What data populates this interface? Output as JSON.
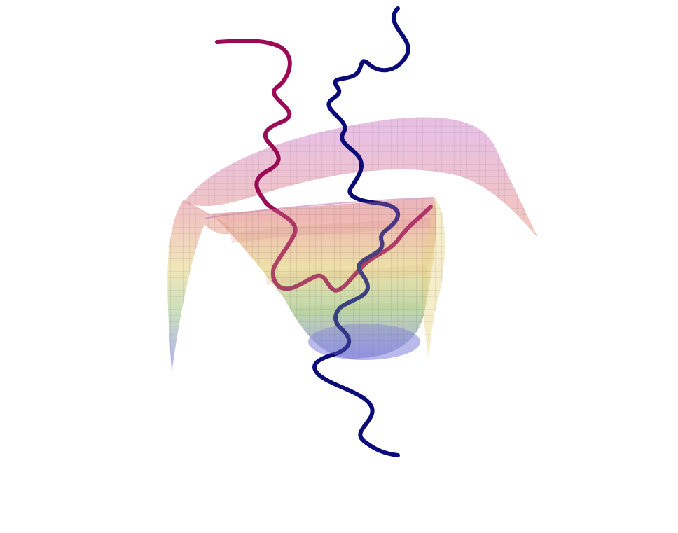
{
  "figure": {
    "background_color": "#ffffff",
    "surface": {
      "shape": "funnel-shaped potential energy surface",
      "colormap": [
        "#8a8ae0",
        "#a6c98e",
        "#e7d58a",
        "#e89f99",
        "#d995cf"
      ],
      "mesh_line_color": "#7a6a78",
      "opacity": 0.55
    },
    "trajectories": [
      {
        "color": "#9b0a55",
        "label": ""
      },
      {
        "color": "#0a0a78",
        "label": ""
      }
    ]
  }
}
